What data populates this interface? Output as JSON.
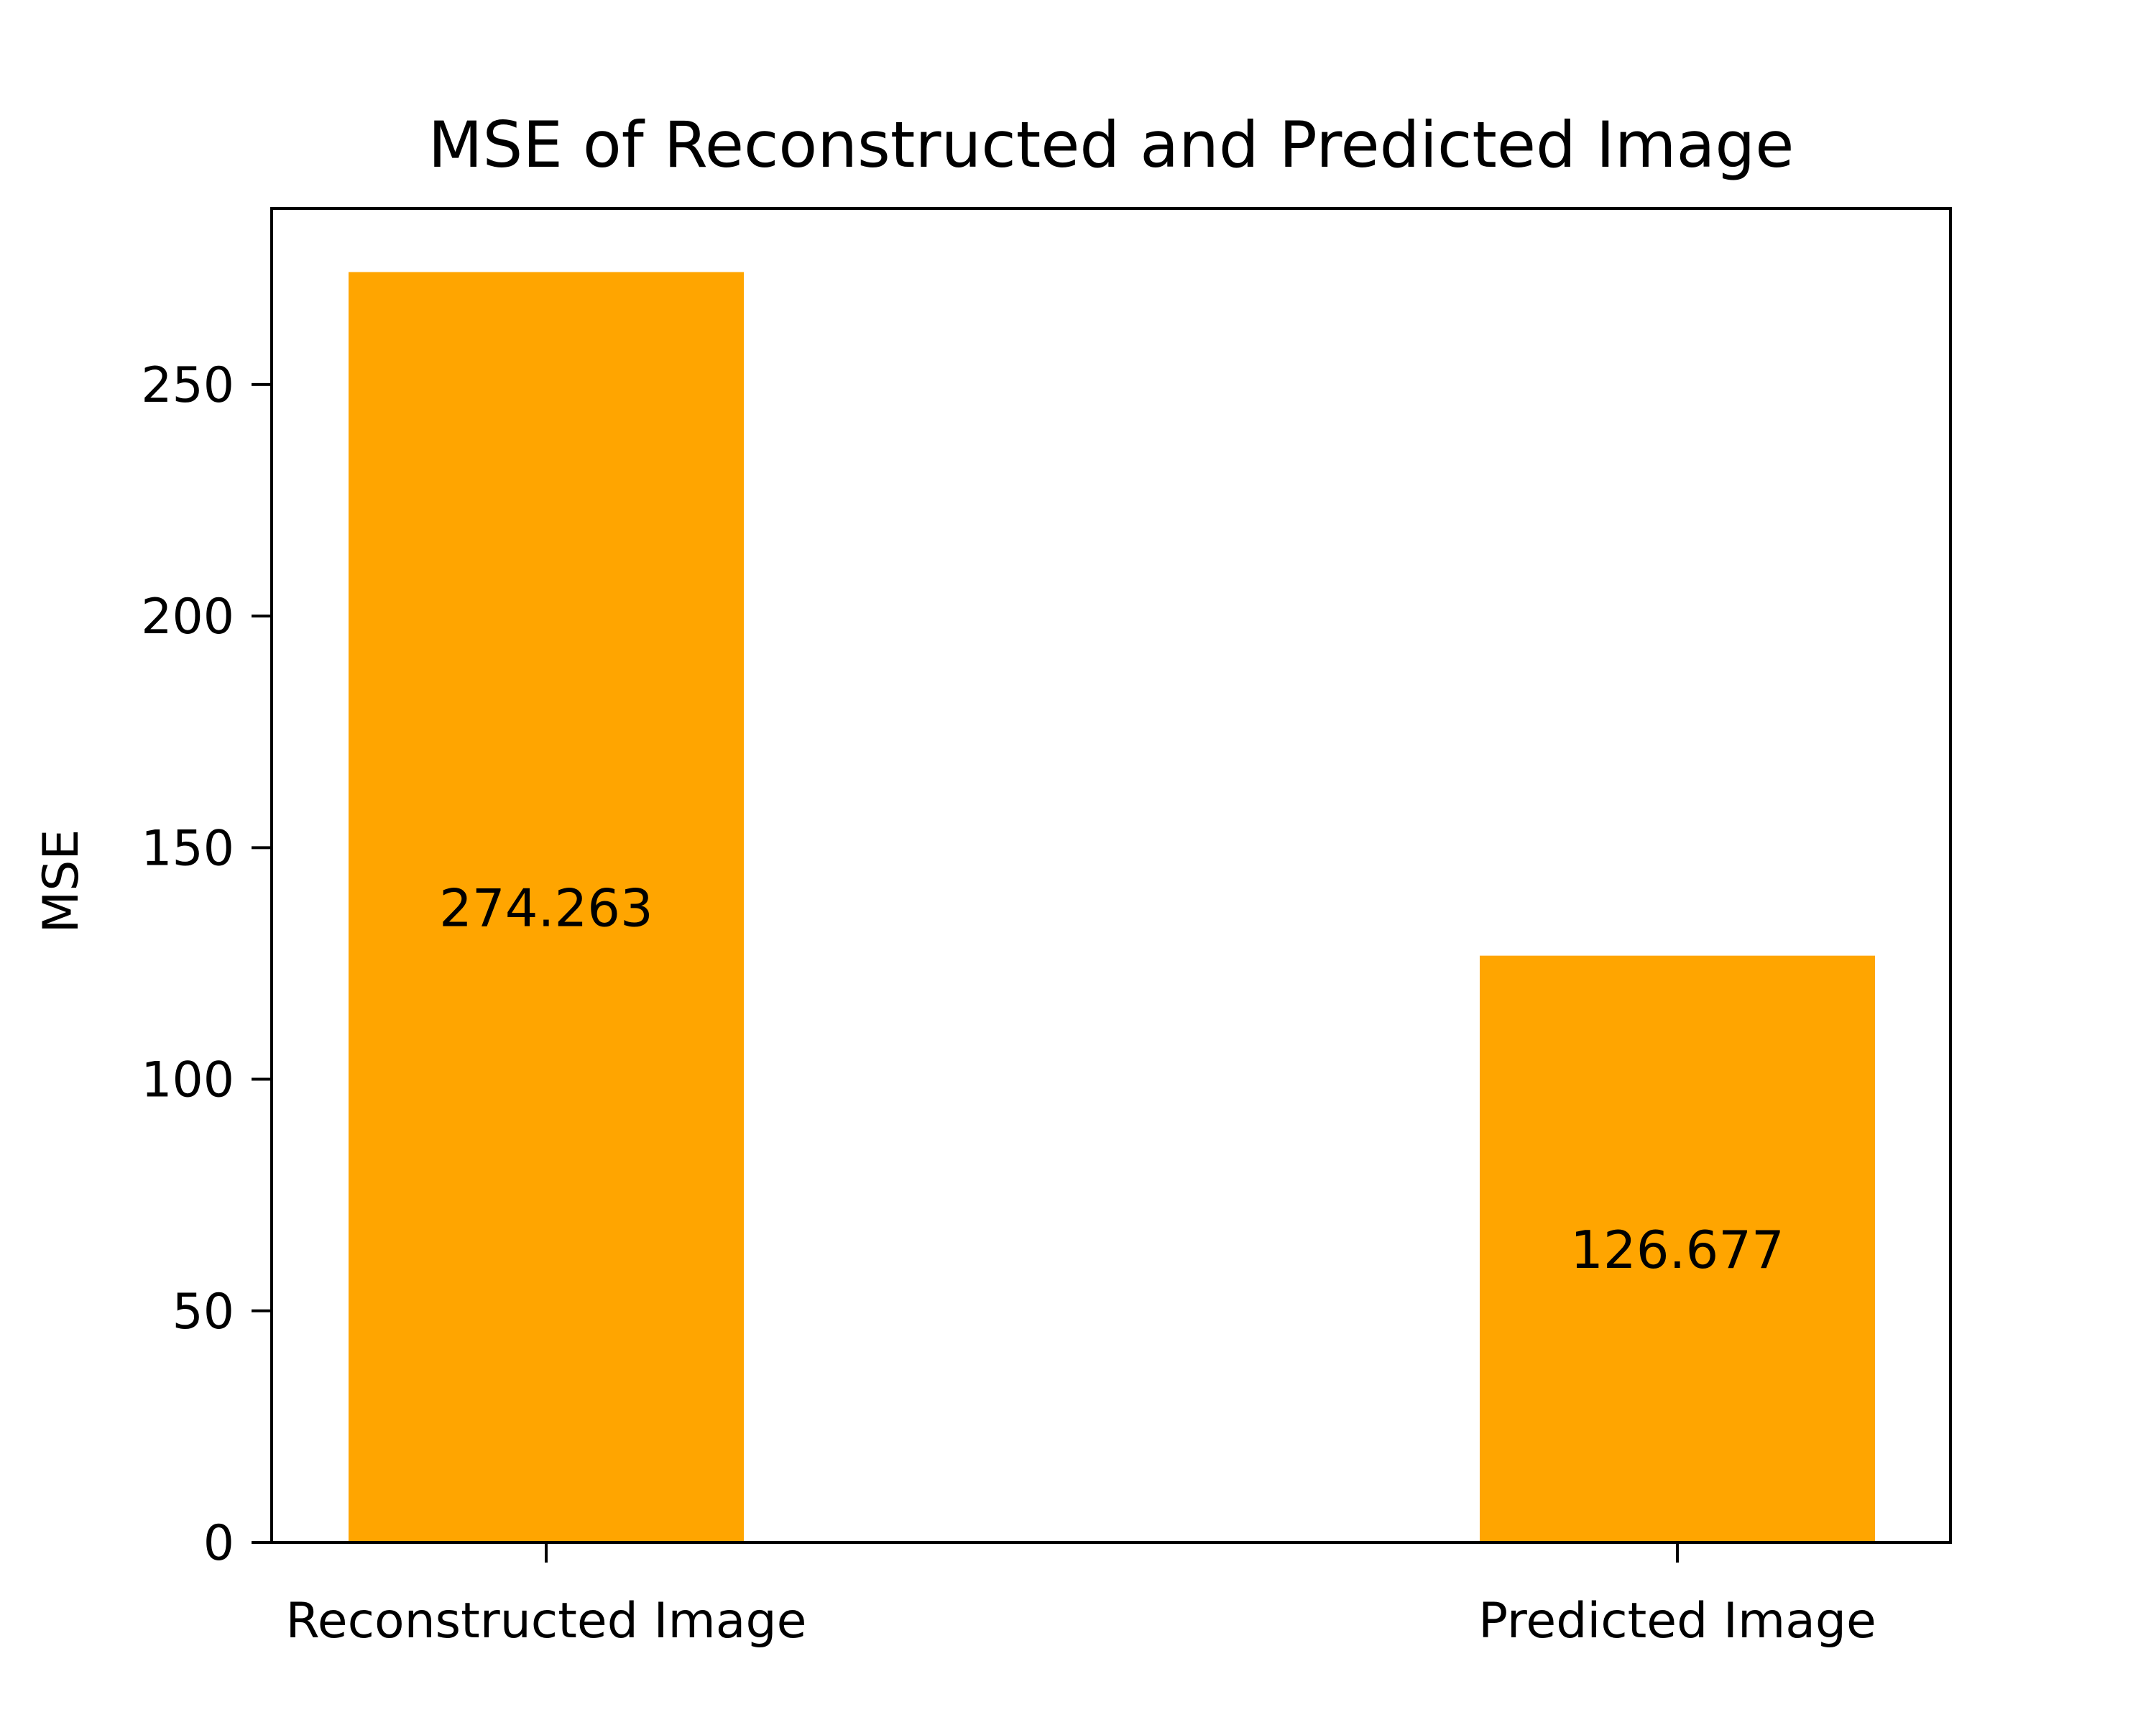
{
  "chart_data": {
    "type": "bar",
    "title": "MSE of Reconstructed and Predicted Image",
    "xlabel": "",
    "ylabel": "MSE",
    "categories": [
      "Reconstructed Image",
      "Predicted Image"
    ],
    "values": [
      274.263,
      126.677
    ],
    "data_labels": [
      "274.263",
      "126.677"
    ],
    "ylim": [
      0,
      288
    ],
    "yticks": [
      0,
      50,
      100,
      150,
      200,
      250
    ],
    "bar_color": "#FFA500",
    "grid": false,
    "legend": "none"
  }
}
